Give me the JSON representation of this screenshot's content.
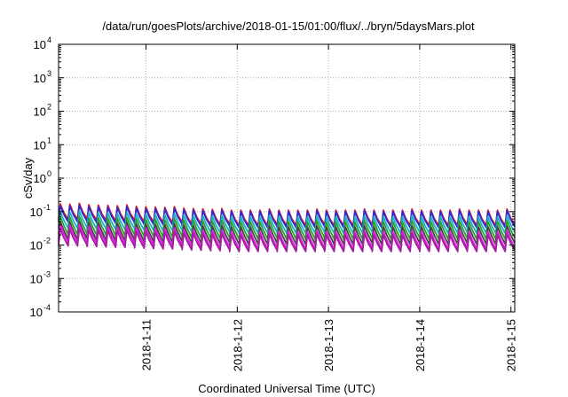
{
  "chart_data": {
    "type": "line",
    "title": "/data/run/goesPlots/archive/2018-01-15/01:00/flux/../bryn/5daysMars.plot",
    "xlabel": "Coordinated Universal Time (UTC)",
    "ylabel": "cSv/day",
    "yscale": "log",
    "ylim_exponents": [
      -4,
      4
    ],
    "y_ticks": [
      {
        "base": "10",
        "exp": "-4"
      },
      {
        "base": "10",
        "exp": "-3"
      },
      {
        "base": "10",
        "exp": "-2"
      },
      {
        "base": "10",
        "exp": "-1"
      },
      {
        "base": "10",
        "exp": "0"
      },
      {
        "base": "10",
        "exp": "1"
      },
      {
        "base": "10",
        "exp": "2"
      },
      {
        "base": "10",
        "exp": "3"
      },
      {
        "base": "10",
        "exp": "4"
      }
    ],
    "xlim": [
      "2018-01-10 01:00",
      "2018-01-15 01:00"
    ],
    "x_ticks": [
      "2018-1-11",
      "2018-1-12",
      "2018-1-13",
      "2018-1-14",
      "2018-1-15"
    ],
    "grid": true,
    "legend": "none",
    "sawtooth_cycles": 48,
    "series": [
      {
        "color": "#e41a1c",
        "early_peak": 0.17,
        "late_peak": 0.11,
        "trough_ratio": 0.35
      },
      {
        "color": "#2b2bd6",
        "early_peak": 0.15,
        "late_peak": 0.1,
        "trough_ratio": 0.33
      },
      {
        "color": "#1ab0c8",
        "early_peak": 0.1,
        "late_peak": 0.07,
        "trough_ratio": 0.32
      },
      {
        "color": "#2ca02c",
        "early_peak": 0.07,
        "late_peak": 0.05,
        "trough_ratio": 0.3
      },
      {
        "color": "#444444",
        "early_peak": 0.05,
        "late_peak": 0.035,
        "trough_ratio": 0.3
      },
      {
        "color": "#e619e6",
        "early_peak": 0.04,
        "late_peak": 0.025,
        "trough_ratio": 0.3
      },
      {
        "color": "#a0219e",
        "early_peak": 0.03,
        "late_peak": 0.02,
        "trough_ratio": 0.32
      }
    ]
  }
}
